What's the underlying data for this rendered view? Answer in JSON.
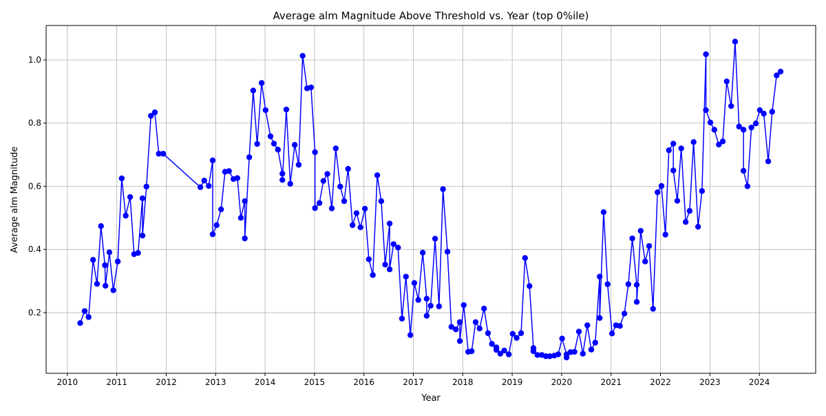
{
  "chart_data": {
    "type": "line",
    "title": "Average alm Magnitude Above Threshold vs. Year (top 0%ile)",
    "xlabel": "Year",
    "ylabel": "Average alm Magnitude",
    "xlim": [
      2009.57,
      2025.14
    ],
    "ylim": [
      0.008,
      1.109
    ],
    "xticks": [
      2010,
      2011,
      2012,
      2013,
      2014,
      2015,
      2016,
      2017,
      2018,
      2019,
      2020,
      2021,
      2022,
      2023,
      2024
    ],
    "yticks": [
      0.2,
      0.4,
      0.6,
      0.8,
      {
        "value": 1,
        "label": "1.0"
      }
    ],
    "grid": true,
    "series": [
      {
        "color": "#0000ff",
        "x": [
          2010.26,
          2010.35,
          2010.43,
          2010.52,
          2010.6,
          2010.68,
          2010.76,
          2010.77,
          2010.85,
          2010.93,
          2011.02,
          2011.1,
          2011.18,
          2011.27,
          2011.35,
          2011.43,
          2011.52,
          2011.52,
          2011.6,
          2011.69,
          2011.77,
          2011.85,
          2011.94,
          2012.69,
          2012.77,
          2012.86,
          2012.94,
          2012.94,
          2013.02,
          2013.11,
          2013.19,
          2013.27,
          2013.36,
          2013.44,
          2013.51,
          2013.59,
          2013.59,
          2013.68,
          2013.76,
          2013.84,
          2013.93,
          2014.01,
          2014.11,
          2014.18,
          2014.26,
          2014.35,
          2014.35,
          2014.43,
          2014.51,
          2014.6,
          2014.68,
          2014.76,
          2014.85,
          2014.93,
          2015.01,
          2015.01,
          2015.1,
          2015.18,
          2015.26,
          2015.35,
          2015.43,
          2015.52,
          2015.6,
          2015.68,
          2015.77,
          2015.85,
          2015.93,
          2016.02,
          2016.1,
          2016.18,
          2016.27,
          2016.35,
          2016.43,
          2016.52,
          2016.52,
          2016.6,
          2016.69,
          2016.77,
          2016.85,
          2016.94,
          2017.02,
          2017.1,
          2017.19,
          2017.27,
          2017.27,
          2017.35,
          2017.44,
          2017.52,
          2017.6,
          2017.69,
          2017.77,
          2017.86,
          2017.94,
          2017.94,
          2018.02,
          2018.11,
          2018.18,
          2018.26,
          2018.34,
          2018.43,
          2018.51,
          2018.59,
          2018.68,
          2018.68,
          2018.76,
          2018.84,
          2018.93,
          2019.01,
          2019.09,
          2019.18,
          2019.26,
          2019.35,
          2019.43,
          2019.43,
          2019.51,
          2019.6,
          2019.68,
          2019.76,
          2019.85,
          2019.93,
          2020.01,
          2020.1,
          2020.1,
          2020.18,
          2020.26,
          2020.35,
          2020.43,
          2020.52,
          2020.6,
          2020.68,
          2020.77,
          2020.77,
          2020.85,
          2020.93,
          2021.02,
          2021.1,
          2021.18,
          2021.27,
          2021.35,
          2021.43,
          2021.52,
          2021.52,
          2021.6,
          2021.69,
          2021.77,
          2021.85,
          2021.94,
          2022.02,
          2022.1,
          2022.17,
          2022.26,
          2022.26,
          2022.34,
          2022.42,
          2022.51,
          2022.59,
          2022.67,
          2022.76,
          2022.84,
          2022.92,
          2022.92,
          2023.01,
          2023.09,
          2023.18,
          2023.26,
          2023.34,
          2023.43,
          2023.51,
          2023.59,
          2023.68,
          2023.68,
          2023.76,
          2023.84,
          2023.93,
          2024.01,
          2024.09,
          2024.18,
          2024.26,
          2024.35,
          2024.43
        ],
        "values": [
          0.167,
          0.205,
          0.186,
          0.367,
          0.291,
          0.474,
          0.35,
          0.285,
          0.391,
          0.271,
          0.362,
          0.625,
          0.507,
          0.566,
          0.385,
          0.389,
          0.562,
          0.444,
          0.599,
          0.823,
          0.834,
          0.703,
          0.703,
          0.597,
          0.618,
          0.601,
          0.682,
          0.448,
          0.477,
          0.527,
          0.646,
          0.648,
          0.623,
          0.626,
          0.5,
          0.553,
          0.435,
          0.692,
          0.903,
          0.734,
          0.927,
          0.841,
          0.758,
          0.735,
          0.716,
          0.64,
          0.62,
          0.843,
          0.608,
          0.731,
          0.668,
          1.013,
          0.91,
          0.913,
          0.708,
          0.531,
          0.547,
          0.617,
          0.639,
          0.53,
          0.72,
          0.599,
          0.553,
          0.655,
          0.477,
          0.515,
          0.47,
          0.529,
          0.369,
          0.319,
          0.635,
          0.553,
          0.352,
          0.482,
          0.337,
          0.417,
          0.406,
          0.181,
          0.314,
          0.129,
          0.294,
          0.24,
          0.39,
          0.244,
          0.19,
          0.222,
          0.434,
          0.22,
          0.591,
          0.393,
          0.155,
          0.147,
          0.17,
          0.11,
          0.224,
          0.076,
          0.078,
          0.17,
          0.15,
          0.213,
          0.135,
          0.101,
          0.09,
          0.082,
          0.07,
          0.08,
          0.068,
          0.133,
          0.12,
          0.135,
          0.373,
          0.284,
          0.088,
          0.078,
          0.066,
          0.066,
          0.062,
          0.062,
          0.064,
          0.068,
          0.118,
          0.068,
          0.058,
          0.075,
          0.076,
          0.14,
          0.07,
          0.16,
          0.083,
          0.105,
          0.314,
          0.183,
          0.518,
          0.29,
          0.134,
          0.16,
          0.158,
          0.197,
          0.29,
          0.435,
          0.288,
          0.234,
          0.459,
          0.362,
          0.411,
          0.212,
          0.581,
          0.601,
          0.447,
          0.714,
          0.735,
          0.65,
          0.554,
          0.72,
          0.487,
          0.522,
          0.74,
          0.472,
          0.585,
          1.018,
          0.841,
          0.802,
          0.779,
          0.732,
          0.742,
          0.932,
          0.854,
          1.058,
          0.789,
          0.779,
          0.649,
          0.6,
          0.786,
          0.799,
          0.841,
          0.83,
          0.679,
          0.836,
          0.951,
          0.963
        ]
      }
    ]
  }
}
